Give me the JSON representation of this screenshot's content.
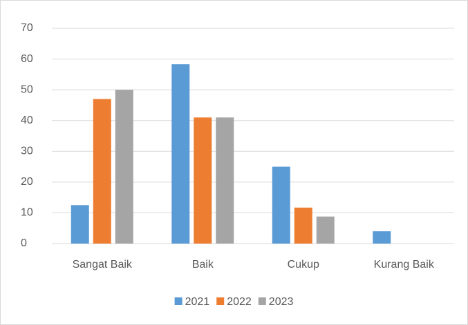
{
  "chart_data": {
    "type": "bar",
    "categories": [
      "Sangat Baik",
      "Baik",
      "Cukup",
      "Kurang Baik"
    ],
    "series": [
      {
        "name": "2021",
        "color": "#5b9bd5",
        "values": [
          12.5,
          58.3,
          25,
          4
        ]
      },
      {
        "name": "2022",
        "color": "#ed7d31",
        "values": [
          47,
          41,
          11.7,
          0
        ]
      },
      {
        "name": "2023",
        "color": "#a5a5a5",
        "values": [
          50,
          41,
          8.8,
          0
        ]
      }
    ],
    "ylim": [
      0,
      70
    ],
    "yticks": [
      0,
      10,
      20,
      30,
      40,
      50,
      60,
      70
    ],
    "grid": true,
    "legend": "bottom"
  }
}
